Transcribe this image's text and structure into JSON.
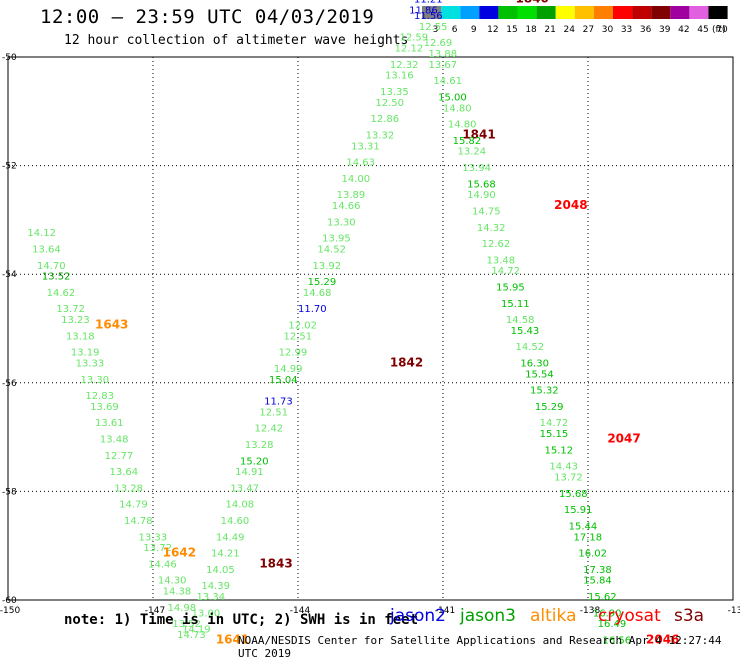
{
  "header": {
    "title": "12:00 — 23:59 UTC 04/03/2019",
    "subtitle": "12 hour collection of altimeter wave heights"
  },
  "legend": {
    "unit": "(ft)",
    "bins": [
      {
        "label": "3",
        "color": "#808080"
      },
      {
        "label": "6",
        "color": "#00e0e0"
      },
      {
        "label": "9",
        "color": "#00a0ff"
      },
      {
        "label": "12",
        "color": "#0000e0"
      },
      {
        "label": "15",
        "color": "#00c000"
      },
      {
        "label": "18",
        "color": "#00e000"
      },
      {
        "label": "21",
        "color": "#00a000"
      },
      {
        "label": "24",
        "color": "#ffff00"
      },
      {
        "label": "27",
        "color": "#ffc000"
      },
      {
        "label": "30",
        "color": "#ff8000"
      },
      {
        "label": "33",
        "color": "#ff0000"
      },
      {
        "label": "36",
        "color": "#c00000"
      },
      {
        "label": "39",
        "color": "#800000"
      },
      {
        "label": "42",
        "color": "#a000a0"
      },
      {
        "label": "45",
        "color": "#e060e0"
      },
      {
        "label": "70",
        "color": "#000000"
      }
    ]
  },
  "axes": {
    "x_ticks": [
      "-150",
      "-147",
      "-144",
      "-141",
      "-138",
      "-13"
    ],
    "y_ticks": [
      "-50",
      "-52",
      "-54",
      "-56",
      "-58",
      "-60"
    ]
  },
  "tracks": [
    {
      "time": "1643",
      "time_color": "#ff8c00",
      "time_lat": -55.0,
      "time_lon": -148.2,
      "points": [
        {
          "lat": -53.3,
          "lon": -149.6,
          "v": "14.12",
          "c": "#66e666"
        },
        {
          "lat": -53.6,
          "lon": -149.5,
          "v": "13.64",
          "c": "#66e666"
        },
        {
          "lat": -53.9,
          "lon": -149.4,
          "v": "14.70",
          "c": "#66e666"
        },
        {
          "lat": -54.1,
          "lon": -149.3,
          "v": "13.52",
          "c": "#00a000"
        },
        {
          "lat": -54.4,
          "lon": -149.2,
          "v": "14.62",
          "c": "#66e666"
        },
        {
          "lat": -54.7,
          "lon": -149.0,
          "v": "13.72",
          "c": "#66e666"
        },
        {
          "lat": -54.9,
          "lon": -148.9,
          "v": "13.23",
          "c": "#66e666"
        },
        {
          "lat": -55.2,
          "lon": -148.8,
          "v": "13.18",
          "c": "#66e666"
        },
        {
          "lat": -55.5,
          "lon": -148.7,
          "v": "13.19",
          "c": "#66e666"
        },
        {
          "lat": -55.7,
          "lon": -148.6,
          "v": "13.33",
          "c": "#66e666"
        },
        {
          "lat": -56.0,
          "lon": -148.5,
          "v": "13.30",
          "c": "#66e666"
        },
        {
          "lat": -56.3,
          "lon": -148.4,
          "v": "12.83",
          "c": "#66e666"
        },
        {
          "lat": -56.5,
          "lon": -148.3,
          "v": "13.69",
          "c": "#66e666"
        },
        {
          "lat": -56.8,
          "lon": -148.2,
          "v": "13.61",
          "c": "#66e666"
        },
        {
          "lat": -57.1,
          "lon": -148.1,
          "v": "13.48",
          "c": "#66e666"
        },
        {
          "lat": -57.4,
          "lon": -148.0,
          "v": "12.77",
          "c": "#66e666"
        },
        {
          "lat": -57.7,
          "lon": -147.9,
          "v": "13.64",
          "c": "#66e666"
        },
        {
          "lat": -58.0,
          "lon": -147.8,
          "v": "13.28",
          "c": "#66e666"
        },
        {
          "lat": -58.3,
          "lon": -147.7,
          "v": "14.79",
          "c": "#66e666"
        },
        {
          "lat": -58.6,
          "lon": -147.6,
          "v": "14.78",
          "c": "#66e666"
        }
      ]
    },
    {
      "time": "1642",
      "time_color": "#ff8c00",
      "time_lat": -59.2,
      "time_lon": -146.8,
      "points": [
        {
          "lat": -58.9,
          "lon": -147.3,
          "v": "13.33",
          "c": "#66e666"
        },
        {
          "lat": -59.1,
          "lon": -147.2,
          "v": "13.72",
          "c": "#66e666"
        },
        {
          "lat": -59.4,
          "lon": -147.1,
          "v": "14.46",
          "c": "#66e666"
        },
        {
          "lat": -59.7,
          "lon": -146.9,
          "v": "14.30",
          "c": "#66e666"
        },
        {
          "lat": -59.9,
          "lon": -146.8,
          "v": "14.38",
          "c": "#66e666"
        },
        {
          "lat": -60.2,
          "lon": -146.7,
          "v": "14.98",
          "c": "#66e666"
        },
        {
          "lat": -60.5,
          "lon": -146.6,
          "v": "13.52",
          "c": "#66e666"
        },
        {
          "lat": -60.7,
          "lon": -146.5,
          "v": "14.73",
          "c": "#66e666"
        }
      ]
    },
    {
      "time": "1641",
      "time_color": "#ff8c00",
      "time_lat": -60.8,
      "time_lon": -145.7,
      "points": [
        {
          "lat": -60.6,
          "lon": -146.4,
          "v": "14.19",
          "c": "#66e666"
        },
        {
          "lat": -60.3,
          "lon": -146.2,
          "v": "13.00",
          "c": "#66e666"
        },
        {
          "lat": -60.0,
          "lon": -146.1,
          "v": "13.34",
          "c": "#66e666"
        },
        {
          "lat": -59.8,
          "lon": -146.0,
          "v": "14.39",
          "c": "#66e666"
        },
        {
          "lat": -59.5,
          "lon": -145.9,
          "v": "14.05",
          "c": "#66e666"
        }
      ]
    },
    {
      "time": "1843",
      "time_color": "#800000",
      "time_lat": -59.4,
      "time_lon": -144.8,
      "points": [
        {
          "lat": -59.2,
          "lon": -145.8,
          "v": "14.21",
          "c": "#66e666"
        },
        {
          "lat": -58.9,
          "lon": -145.7,
          "v": "14.49",
          "c": "#66e666"
        },
        {
          "lat": -58.6,
          "lon": -145.6,
          "v": "14.60",
          "c": "#66e666"
        },
        {
          "lat": -58.3,
          "lon": -145.5,
          "v": "14.08",
          "c": "#66e666"
        },
        {
          "lat": -58.0,
          "lon": -145.4,
          "v": "13.47",
          "c": "#66e666"
        },
        {
          "lat": -57.7,
          "lon": -145.3,
          "v": "14.91",
          "c": "#66e666"
        },
        {
          "lat": -57.5,
          "lon": -145.2,
          "v": "15.20",
          "c": "#00c000"
        },
        {
          "lat": -57.2,
          "lon": -145.1,
          "v": "13.28",
          "c": "#66e666"
        },
        {
          "lat": -56.9,
          "lon": -144.9,
          "v": "12.42",
          "c": "#66e666"
        },
        {
          "lat": -56.6,
          "lon": -144.8,
          "v": "12.51",
          "c": "#66e666"
        },
        {
          "lat": -56.4,
          "lon": -144.7,
          "v": "11.73",
          "c": "#0000e0"
        },
        {
          "lat": -56.0,
          "lon": -144.6,
          "v": "15.04",
          "c": "#00c000"
        }
      ]
    },
    {
      "time": "1842",
      "time_color": "#800000",
      "time_lat": -55.7,
      "time_lon": -142.1,
      "points": [
        {
          "lat": -55.8,
          "lon": -144.5,
          "v": "14.99",
          "c": "#66e666"
        },
        {
          "lat": -55.5,
          "lon": -144.4,
          "v": "12.99",
          "c": "#66e666"
        },
        {
          "lat": -55.2,
          "lon": -144.3,
          "v": "12.51",
          "c": "#66e666"
        },
        {
          "lat": -55.0,
          "lon": -144.2,
          "v": "12.02",
          "c": "#66e666"
        },
        {
          "lat": -54.7,
          "lon": -144.0,
          "v": "11.70",
          "c": "#0000e0"
        },
        {
          "lat": -54.4,
          "lon": -143.9,
          "v": "14.68",
          "c": "#66e666"
        },
        {
          "lat": -54.2,
          "lon": -143.8,
          "v": "15.29",
          "c": "#00c000"
        },
        {
          "lat": -53.9,
          "lon": -143.7,
          "v": "13.92",
          "c": "#66e666"
        },
        {
          "lat": -53.6,
          "lon": -143.6,
          "v": "14.52",
          "c": "#66e666"
        },
        {
          "lat": -53.4,
          "lon": -143.5,
          "v": "13.95",
          "c": "#66e666"
        },
        {
          "lat": -53.1,
          "lon": -143.4,
          "v": "13.30",
          "c": "#66e666"
        },
        {
          "lat": -52.8,
          "lon": -143.3,
          "v": "14.66",
          "c": "#66e666"
        },
        {
          "lat": -52.6,
          "lon": -143.2,
          "v": "13.89",
          "c": "#66e666"
        },
        {
          "lat": -52.3,
          "lon": -143.1,
          "v": "14.00",
          "c": "#66e666"
        },
        {
          "lat": -52.0,
          "lon": -143.0,
          "v": "14.63",
          "c": "#66e666"
        },
        {
          "lat": -51.7,
          "lon": -142.9,
          "v": "13.31",
          "c": "#66e666"
        }
      ]
    },
    {
      "time": "1841",
      "time_color": "#800000",
      "time_lat": -51.5,
      "time_lon": -140.6,
      "points": [
        {
          "lat": -51.5,
          "lon": -142.6,
          "v": "13.32",
          "c": "#66e666"
        },
        {
          "lat": -51.2,
          "lon": -142.5,
          "v": "12.86",
          "c": "#66e666"
        },
        {
          "lat": -50.9,
          "lon": -142.4,
          "v": "12.50",
          "c": "#66e666"
        },
        {
          "lat": -50.7,
          "lon": -142.3,
          "v": "13.35",
          "c": "#66e666"
        },
        {
          "lat": -50.4,
          "lon": -142.2,
          "v": "13.16",
          "c": "#66e666"
        },
        {
          "lat": -50.2,
          "lon": -142.1,
          "v": "12.32",
          "c": "#66e666"
        },
        {
          "lat": -49.9,
          "lon": -142.0,
          "v": "12.12",
          "c": "#66e666"
        },
        {
          "lat": -49.7,
          "lon": -141.9,
          "v": "12.59",
          "c": "#66e666"
        }
      ]
    },
    {
      "time": "1840",
      "time_color": "#800000",
      "time_lat": -49.0,
      "time_lon": -139.5,
      "points": [
        {
          "lat": -49.0,
          "lon": -141.6,
          "v": "11.21",
          "c": "#0000e0"
        },
        {
          "lat": -49.2,
          "lon": -141.7,
          "v": "11.86",
          "c": "#0000e0"
        },
        {
          "lat": -49.3,
          "lon": -141.6,
          "v": "11.56",
          "c": "#0000e0"
        },
        {
          "lat": -49.5,
          "lon": -141.5,
          "v": "12.55",
          "c": "#66e666"
        },
        {
          "lat": -49.8,
          "lon": -141.4,
          "v": "12.69",
          "c": "#66e666"
        },
        {
          "lat": -50.0,
          "lon": -141.3,
          "v": "13.88",
          "c": "#66e666"
        },
        {
          "lat": -50.2,
          "lon": -141.3,
          "v": "13.67",
          "c": "#66e666"
        },
        {
          "lat": -50.5,
          "lon": -141.2,
          "v": "14.61",
          "c": "#66e666"
        },
        {
          "lat": -50.8,
          "lon": -141.1,
          "v": "15.00",
          "c": "#00c000"
        },
        {
          "lat": -51.0,
          "lon": -141.0,
          "v": "14.80",
          "c": "#66e666"
        },
        {
          "lat": -51.3,
          "lon": -140.9,
          "v": "14.80",
          "c": "#66e666"
        },
        {
          "lat": -51.6,
          "lon": -140.8,
          "v": "15.82",
          "c": "#00c000"
        },
        {
          "lat": -51.8,
          "lon": -140.7,
          "v": "13.24",
          "c": "#66e666"
        },
        {
          "lat": -52.1,
          "lon": -140.6,
          "v": "13.94",
          "c": "#66e666"
        },
        {
          "lat": -52.4,
          "lon": -140.5,
          "v": "15.68",
          "c": "#00c000"
        }
      ]
    },
    {
      "time": "2048",
      "time_color": "#ff0000",
      "time_lat": -52.8,
      "time_lon": -138.7,
      "points": [
        {
          "lat": -52.6,
          "lon": -140.5,
          "v": "14.90",
          "c": "#66e666"
        },
        {
          "lat": -52.9,
          "lon": -140.4,
          "v": "14.75",
          "c": "#66e666"
        },
        {
          "lat": -53.2,
          "lon": -140.3,
          "v": "14.32",
          "c": "#66e666"
        },
        {
          "lat": -53.5,
          "lon": -140.2,
          "v": "12.62",
          "c": "#66e666"
        },
        {
          "lat": -53.8,
          "lon": -140.1,
          "v": "13.48",
          "c": "#66e666"
        },
        {
          "lat": -54.0,
          "lon": -140.0,
          "v": "14.72",
          "c": "#66e666"
        },
        {
          "lat": -54.3,
          "lon": -139.9,
          "v": "15.95",
          "c": "#00c000"
        },
        {
          "lat": -54.6,
          "lon": -139.8,
          "v": "15.11",
          "c": "#00c000"
        },
        {
          "lat": -54.9,
          "lon": -139.7,
          "v": "14.58",
          "c": "#66e666"
        },
        {
          "lat": -55.1,
          "lon": -139.6,
          "v": "15.43",
          "c": "#00c000"
        },
        {
          "lat": -55.4,
          "lon": -139.5,
          "v": "14.52",
          "c": "#66e666"
        },
        {
          "lat": -55.7,
          "lon": -139.4,
          "v": "16.30",
          "c": "#00c000"
        },
        {
          "lat": -55.9,
          "lon": -139.3,
          "v": "15.54",
          "c": "#00c000"
        },
        {
          "lat": -56.2,
          "lon": -139.2,
          "v": "15.32",
          "c": "#00c000"
        },
        {
          "lat": -56.5,
          "lon": -139.1,
          "v": "15.29",
          "c": "#00c000"
        },
        {
          "lat": -56.8,
          "lon": -139.0,
          "v": "14.72",
          "c": "#66e666"
        }
      ]
    },
    {
      "time": "2047",
      "time_color": "#ff0000",
      "time_lat": -57.1,
      "time_lon": -137.6,
      "points": [
        {
          "lat": -57.0,
          "lon": -139.0,
          "v": "15.15",
          "c": "#00c000"
        },
        {
          "lat": -57.3,
          "lon": -138.9,
          "v": "15.12",
          "c": "#00c000"
        },
        {
          "lat": -57.6,
          "lon": -138.8,
          "v": "14.43",
          "c": "#66e666"
        },
        {
          "lat": -57.8,
          "lon": -138.7,
          "v": "13.72",
          "c": "#66e666"
        },
        {
          "lat": -58.1,
          "lon": -138.6,
          "v": "15.68",
          "c": "#00c000"
        },
        {
          "lat": -58.4,
          "lon": -138.5,
          "v": "15.91",
          "c": "#00c000"
        },
        {
          "lat": -58.7,
          "lon": -138.4,
          "v": "15.44",
          "c": "#00c000"
        },
        {
          "lat": -58.9,
          "lon": -138.3,
          "v": "17.18",
          "c": "#00c000"
        },
        {
          "lat": -59.2,
          "lon": -138.2,
          "v": "16.02",
          "c": "#00c000"
        },
        {
          "lat": -59.5,
          "lon": -138.1,
          "v": "17.38",
          "c": "#00c000"
        },
        {
          "lat": -59.7,
          "lon": -138.1,
          "v": "15.84",
          "c": "#00c000"
        },
        {
          "lat": -60.0,
          "lon": -138.0,
          "v": "15.62",
          "c": "#00c000"
        },
        {
          "lat": -60.3,
          "lon": -137.9,
          "v": "16.90",
          "c": "#00c000"
        },
        {
          "lat": -60.5,
          "lon": -137.8,
          "v": "16.49",
          "c": "#00c000"
        }
      ]
    },
    {
      "time": "2046",
      "time_color": "#ff0000",
      "time_lat": -60.8,
      "time_lon": -136.8,
      "points": [
        {
          "lat": -60.8,
          "lon": -137.7,
          "v": "16.56",
          "c": "#00c000"
        }
      ]
    }
  ],
  "footer": {
    "note": "note: 1) Time is in UTC; 2) SWH is in feet",
    "missions": [
      {
        "label": "jason2",
        "color": "#0000e0"
      },
      {
        "label": "jason3",
        "color": "#00a000"
      },
      {
        "label": "altika",
        "color": "#ff8c00"
      },
      {
        "label": "cryosat",
        "color": "#ff0000"
      },
      {
        "label": "s3a",
        "color": "#800000"
      }
    ],
    "credit": "NOAA/NESDIS Center for Satellite Applications and Research   Apr  4 12:27:44 UTC 2019"
  }
}
